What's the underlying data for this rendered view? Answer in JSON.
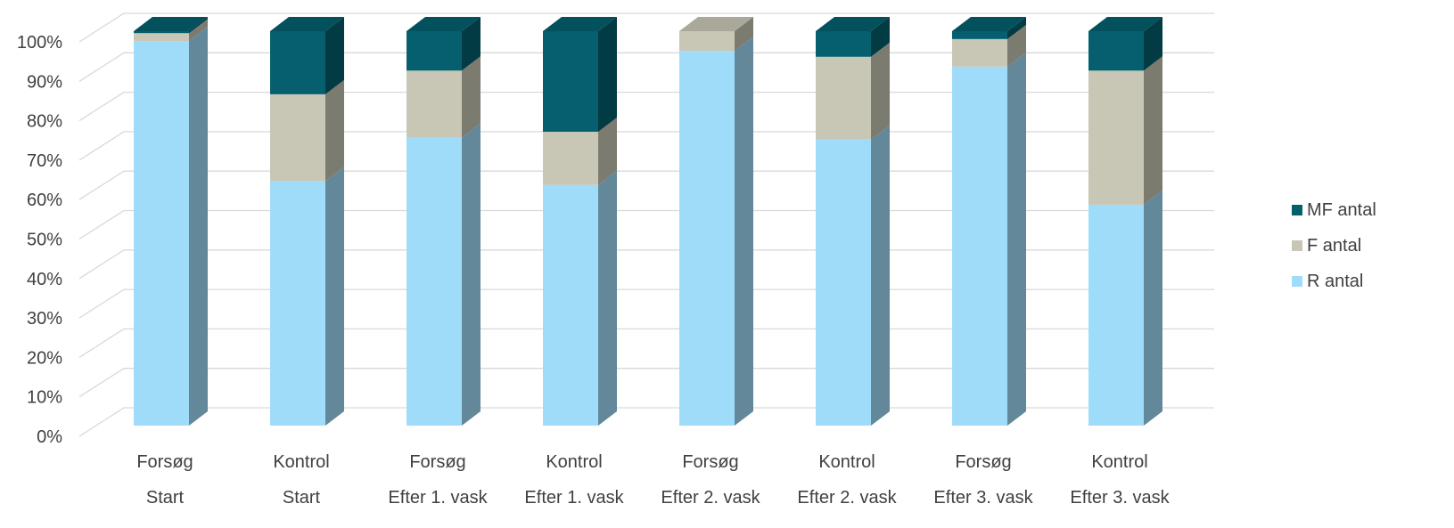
{
  "chart_data": {
    "type": "bar",
    "stacked": "percent",
    "three_d": true,
    "categories": [
      [
        "Forsøg",
        "Start"
      ],
      [
        "Kontrol",
        "Start"
      ],
      [
        "Forsøg",
        "Efter 1. vask"
      ],
      [
        "Kontrol",
        "Efter 1. vask"
      ],
      [
        "Forsøg",
        "Efter 2. vask"
      ],
      [
        "Kontrol",
        "Efter 2. vask"
      ],
      [
        "Forsøg",
        "Efter 3. vask"
      ],
      [
        "Kontrol",
        "Efter 3. vask"
      ]
    ],
    "series": [
      {
        "name": "R antal",
        "color": "#9fdcf9",
        "values": [
          97.5,
          62,
          73,
          61,
          95,
          72.5,
          91,
          56
        ]
      },
      {
        "name": "F antal",
        "color": "#c8c6b4",
        "values": [
          2,
          22,
          17,
          13.5,
          5,
          21,
          7,
          34
        ]
      },
      {
        "name": "MF antal",
        "color": "#055f6e",
        "values": [
          0.5,
          16,
          10,
          25.5,
          0,
          6.5,
          2,
          10
        ]
      }
    ],
    "yticks": [
      "0%",
      "10%",
      "20%",
      "30%",
      "40%",
      "50%",
      "60%",
      "70%",
      "80%",
      "90%",
      "100%"
    ],
    "ylim": [
      0,
      100
    ],
    "grid": true,
    "legend_position": "right",
    "legend_order": [
      "MF antal",
      "F antal",
      "R antal"
    ]
  }
}
